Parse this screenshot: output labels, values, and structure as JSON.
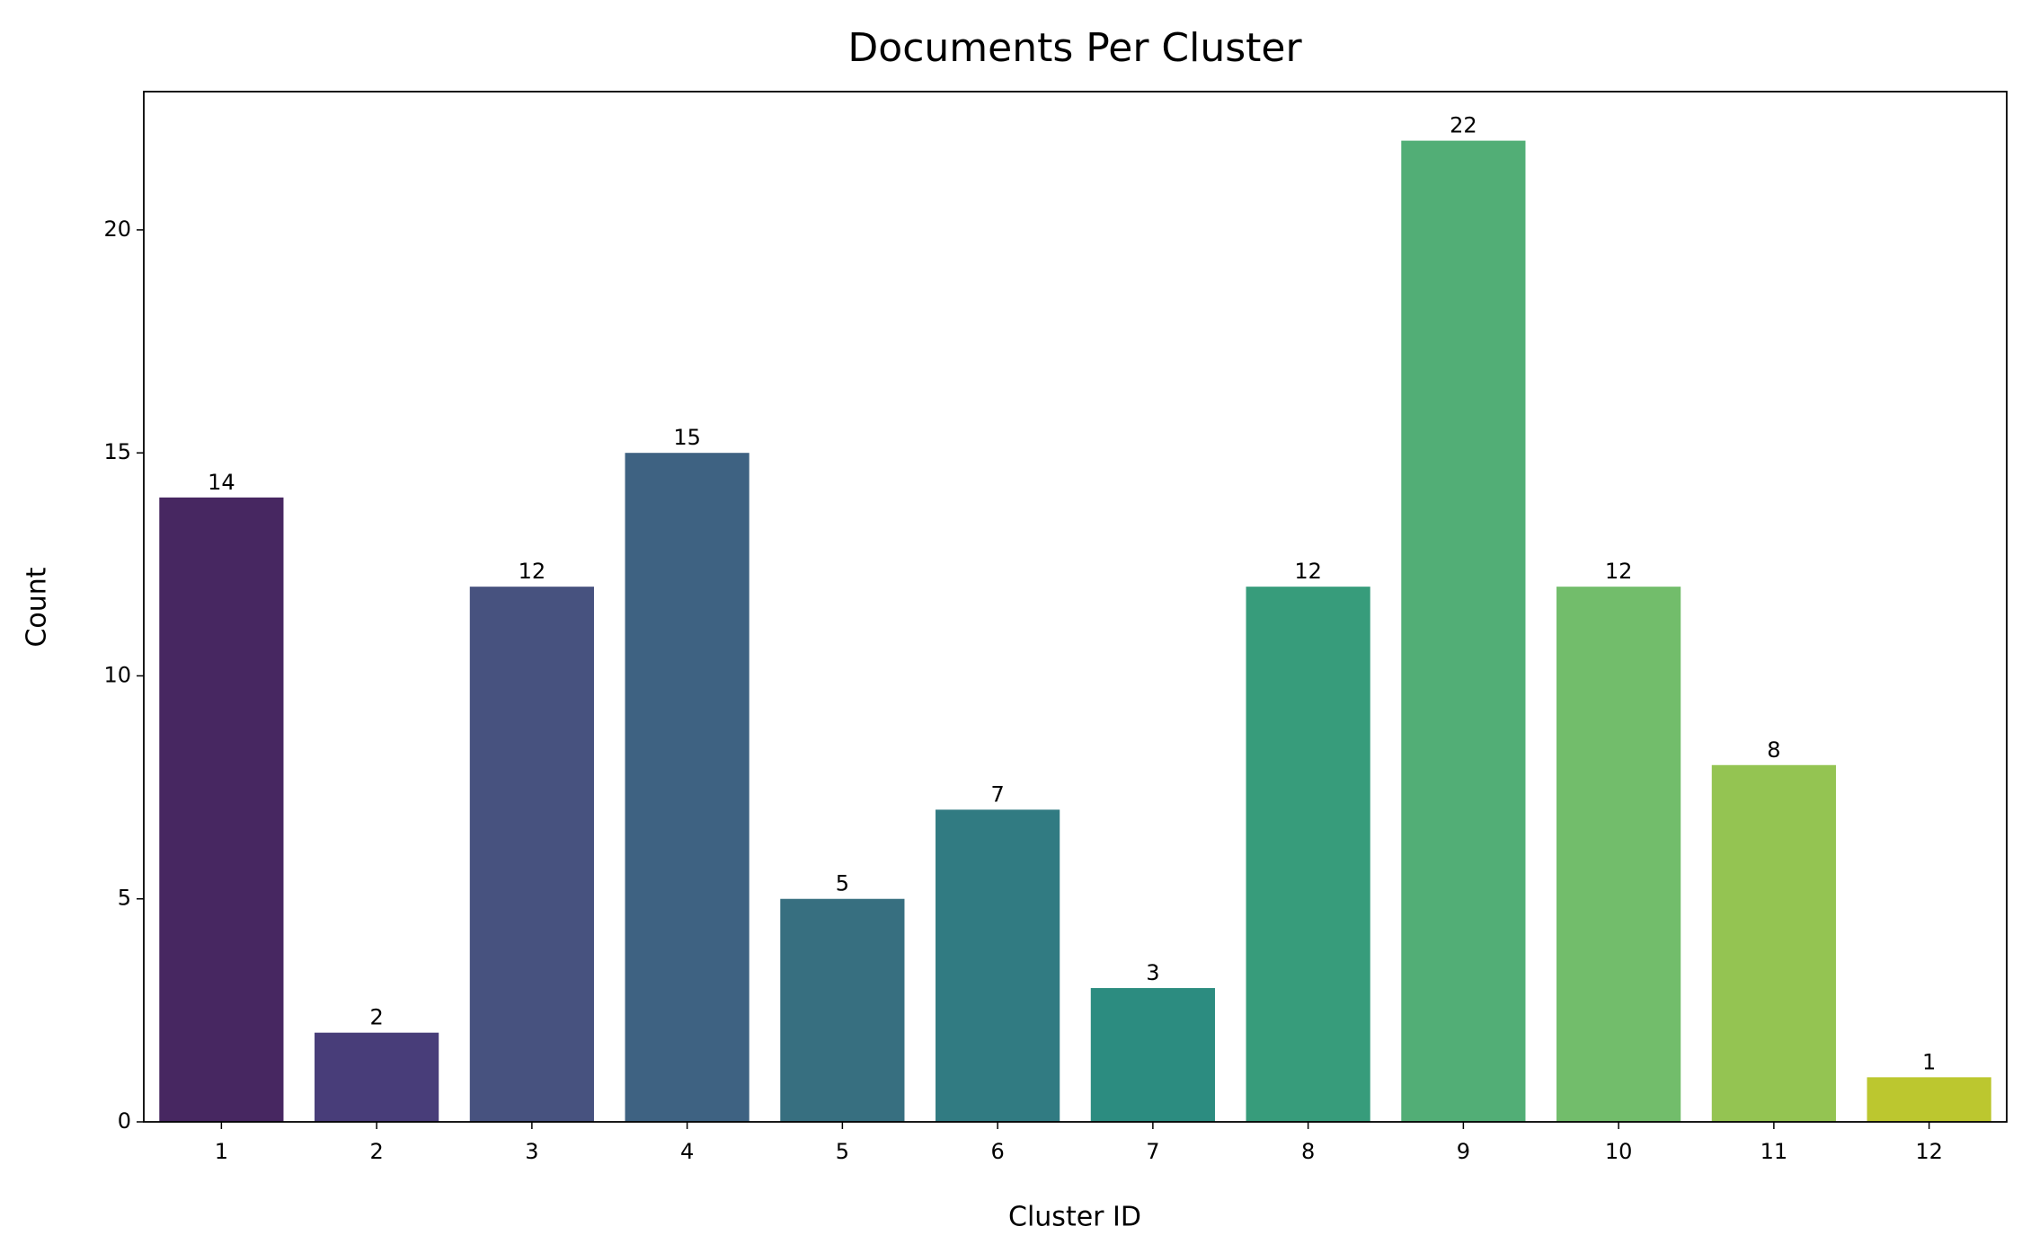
{
  "chart_data": {
    "type": "bar",
    "title": "Documents Per Cluster",
    "x_label": "Cluster ID",
    "y_label": "Count",
    "categories": [
      "1",
      "2",
      "3",
      "4",
      "5",
      "6",
      "7",
      "8",
      "9",
      "10",
      "11",
      "12"
    ],
    "values": [
      14,
      2,
      12,
      15,
      5,
      7,
      3,
      12,
      22,
      12,
      8,
      1
    ],
    "colors": [
      "#472761",
      "#483d79",
      "#47527f",
      "#3e6282",
      "#376f80",
      "#317b82",
      "#2c8c80",
      "#379c7b",
      "#52ae76",
      "#72bd6b",
      "#94c452",
      "#bcc72f"
    ],
    "ylim": [
      0,
      23.1
    ],
    "yticks": [
      0,
      5,
      10,
      15,
      20
    ],
    "grid": false
  }
}
